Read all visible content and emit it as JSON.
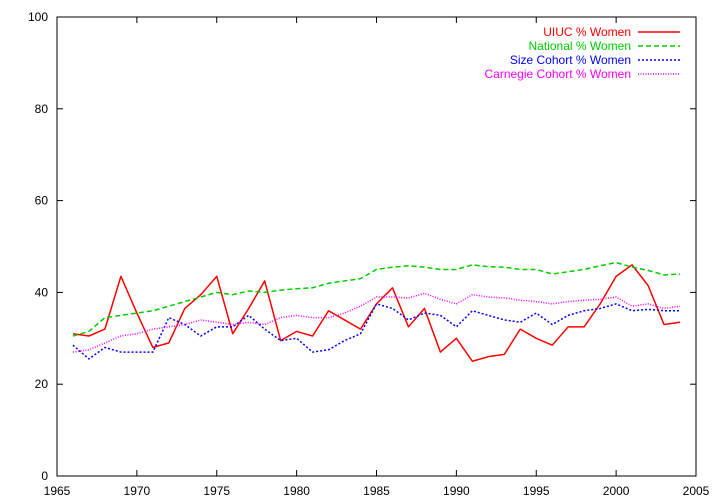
{
  "chart_data": {
    "type": "line",
    "title": "",
    "xlabel": "",
    "ylabel": "",
    "xlim": [
      1965,
      2005
    ],
    "ylim": [
      0,
      100
    ],
    "xticks": [
      1965,
      1970,
      1975,
      1980,
      1985,
      1990,
      1995,
      2000,
      2005
    ],
    "yticks": [
      0,
      20,
      40,
      60,
      80,
      100
    ],
    "grid": false,
    "legend_position": "top-right",
    "x": [
      1966,
      1967,
      1968,
      1969,
      1970,
      1971,
      1972,
      1973,
      1974,
      1975,
      1976,
      1977,
      1978,
      1979,
      1980,
      1981,
      1982,
      1983,
      1984,
      1985,
      1986,
      1987,
      1988,
      1989,
      1990,
      1991,
      1992,
      1993,
      1994,
      1995,
      1996,
      1997,
      1998,
      1999,
      2000,
      2001,
      2002,
      2003,
      2004
    ],
    "series": [
      {
        "name": "UIUC % Women",
        "color": "#ff0000",
        "dash": "solid",
        "values": [
          31,
          30.5,
          32,
          43.5,
          35.5,
          28,
          29,
          36.5,
          39.5,
          43.5,
          31,
          36.5,
          42.5,
          29.5,
          31.5,
          30.5,
          36,
          34,
          32,
          37.5,
          41,
          32.5,
          36.5,
          27,
          30,
          25,
          26,
          26.5,
          32,
          30,
          28.5,
          32.5,
          32.5,
          37.5,
          43.5,
          46,
          41.5,
          33,
          33.5
        ]
      },
      {
        "name": "National % Women",
        "color": "#00cc00",
        "dash": "dashed",
        "values": [
          30.5,
          31.5,
          34.5,
          35,
          35.5,
          36,
          37,
          38,
          39,
          40,
          39.5,
          40.3,
          40,
          40.5,
          40.8,
          41,
          42,
          42.5,
          43,
          45,
          45.5,
          45.8,
          45.5,
          45,
          45,
          46,
          45.6,
          45.5,
          45,
          45,
          44,
          44.5,
          45,
          45.8,
          46.5,
          45.5,
          44.8,
          43.8,
          44
        ]
      },
      {
        "name": "Size Cohort % Women",
        "color": "#0000ff",
        "dash": "dotted",
        "values": [
          28.5,
          25.5,
          28,
          27,
          27,
          27,
          34.5,
          33,
          30.5,
          32.5,
          32.5,
          35,
          32,
          29.5,
          30,
          27,
          27.5,
          29.5,
          31,
          37.5,
          36.5,
          34,
          35.5,
          35,
          32.5,
          36,
          35,
          34,
          33.5,
          35.5,
          33,
          35,
          36,
          36.5,
          37.5,
          36,
          36.3,
          36,
          36
        ]
      },
      {
        "name": "Carnegie Cohort % Women",
        "color": "#ff00ff",
        "dash": "dotted-fine",
        "values": [
          27,
          27.5,
          29,
          30.5,
          31,
          32,
          32.5,
          33,
          34,
          33.5,
          33,
          33.5,
          33,
          34.5,
          35,
          34.5,
          34.5,
          35.5,
          37,
          39,
          39,
          38.8,
          39.8,
          38.5,
          37.5,
          39.5,
          39,
          38.8,
          38.3,
          38,
          37.5,
          38,
          38.3,
          38.5,
          39,
          37,
          37.5,
          36.5,
          37
        ]
      }
    ]
  }
}
